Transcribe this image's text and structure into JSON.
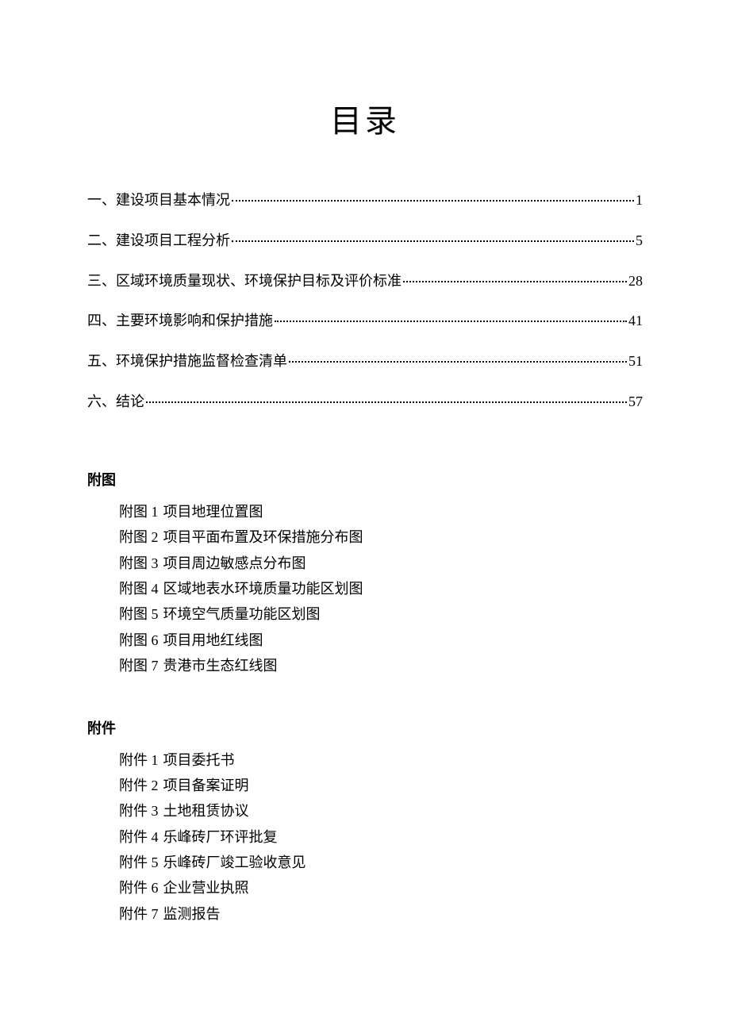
{
  "page": {
    "title": "目录",
    "background_color": "#ffffff",
    "text_color": "#000000",
    "title_fontsize": 40,
    "body_fontsize": 18,
    "font_family": "SimSun"
  },
  "toc": {
    "entries": [
      {
        "label": "一、建设项目基本情况",
        "page": "1"
      },
      {
        "label": "二、建设项目工程分析",
        "page": "5"
      },
      {
        "label": "三、区域环境质量现状、环境保护目标及评价标准",
        "page": "28"
      },
      {
        "label": "四、主要环境影响和保护措施",
        "page": "41"
      },
      {
        "label": "五、环境保护措施监督检查清单",
        "page": "51"
      },
      {
        "label": "六、结论",
        "page": "57"
      }
    ]
  },
  "figures": {
    "heading": "附图",
    "items": [
      {
        "num": "附图 1",
        "text": "项目地理位置图"
      },
      {
        "num": "附图 2",
        "text": "项目平面布置及环保措施分布图"
      },
      {
        "num": "附图 3",
        "text": "项目周边敏感点分布图"
      },
      {
        "num": "附图 4",
        "text": "区域地表水环境质量功能区划图"
      },
      {
        "num": "附图 5",
        "text": "环境空气质量功能区划图"
      },
      {
        "num": "附图 6",
        "text": "项目用地红线图"
      },
      {
        "num": "附图 7",
        "text": "贵港市生态红线图"
      }
    ]
  },
  "attachments": {
    "heading": "附件",
    "items": [
      {
        "num": "附件 1",
        "text": "项目委托书"
      },
      {
        "num": "附件 2",
        "text": "项目备案证明"
      },
      {
        "num": "附件 3",
        "text": "土地租赁协议"
      },
      {
        "num": "附件 4",
        "text": "乐峰砖厂环评批复"
      },
      {
        "num": "附件 5",
        "text": "乐峰砖厂竣工验收意见"
      },
      {
        "num": "附件 6",
        "text": "企业营业执照"
      },
      {
        "num": "附件 7",
        "text": "监测报告"
      }
    ]
  }
}
